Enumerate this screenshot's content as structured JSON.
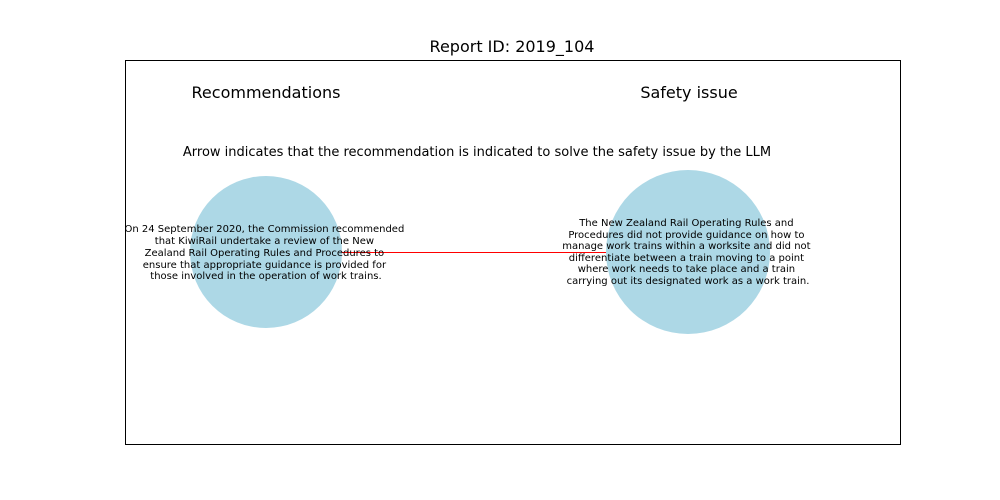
{
  "title": "Report ID: 2019_104",
  "left_heading": "Recommendations",
  "right_heading": "Safety issue",
  "caption": "Arrow indicates that the recommendation is indicated to solve the safety issue by the LLM",
  "recommendation": {
    "lines": [
      "On 24 September 2020, the Commission recommended",
      "that KiwiRail undertake a review of the New",
      "Zealand Rail Operating Rules and Procedures to",
      "ensure that appropriate guidance is provided for",
      "those involved in the operation of work trains."
    ]
  },
  "safety_issue": {
    "lines": [
      "The New Zealand Rail Operating Rules and",
      "Procedures did not provide guidance on how to",
      "manage work trains within a worksite and did not",
      "differentiate between a train moving to a point",
      "where work needs to take place and a train",
      "carrying out its designated work as a work train."
    ]
  },
  "colors": {
    "node_fill": "#add8e6",
    "arrow": "#ff0000",
    "frame": "#000000"
  }
}
